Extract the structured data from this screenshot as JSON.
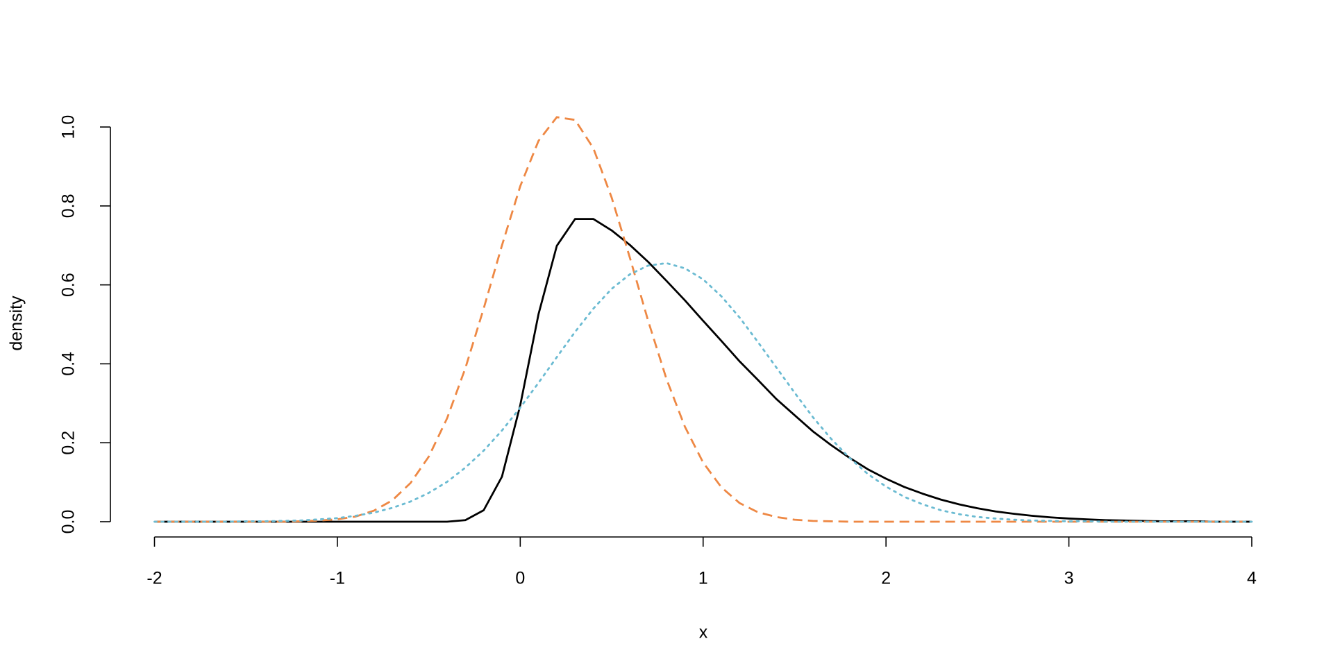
{
  "chart_data": {
    "type": "line",
    "xlabel": "x",
    "ylabel": "density",
    "x": [
      -2,
      -1.9,
      -1.8,
      -1.7,
      -1.6,
      -1.5,
      -1.4,
      -1.3,
      -1.2,
      -1.1,
      -1,
      -0.9,
      -0.8,
      -0.7,
      -0.6,
      -0.5,
      -0.4,
      -0.3,
      -0.2,
      -0.1,
      0,
      0.1,
      0.2,
      0.3,
      0.4,
      0.5,
      0.6,
      0.7,
      0.8,
      0.9,
      1,
      1.1,
      1.2,
      1.3,
      1.4,
      1.5,
      1.6,
      1.7,
      1.8,
      1.9,
      2,
      2.1,
      2.2,
      2.3,
      2.4,
      2.5,
      2.6,
      2.7,
      2.8,
      2.9,
      3,
      3.1,
      3.2,
      3.3,
      3.4,
      3.5,
      3.6,
      3.7,
      3.8,
      3.9,
      4
    ],
    "series": [
      {
        "color": "#000000",
        "linestyle": "solid",
        "values": [
          0,
          0,
          0,
          0,
          0,
          0,
          0,
          0,
          0,
          0,
          0,
          0,
          0,
          0,
          0,
          0,
          0,
          0.004,
          0.029,
          0.114,
          0.295,
          0.526,
          0.699,
          0.767,
          0.767,
          0.738,
          0.701,
          0.658,
          0.61,
          0.561,
          0.509,
          0.458,
          0.406,
          0.359,
          0.311,
          0.27,
          0.229,
          0.194,
          0.162,
          0.133,
          0.109,
          0.088,
          0.071,
          0.056,
          0.044,
          0.034,
          0.026,
          0.02,
          0.015,
          0.011,
          0.008,
          0.006,
          0.004,
          0.003,
          0.002,
          0.001,
          0.001,
          0.001,
          0,
          0,
          0
        ]
      },
      {
        "color": "#ee8844",
        "linestyle": "dashed",
        "values": [
          0,
          0,
          0,
          0,
          0,
          0,
          0,
          0,
          0.001,
          0.003,
          0.006,
          0.013,
          0.028,
          0.054,
          0.098,
          0.165,
          0.262,
          0.389,
          0.54,
          0.7,
          0.85,
          0.965,
          1.025,
          1.018,
          0.946,
          0.821,
          0.668,
          0.508,
          0.361,
          0.241,
          0.15,
          0.087,
          0.047,
          0.024,
          0.012,
          0.005,
          0.002,
          0.001,
          0,
          0,
          0,
          0,
          0,
          0,
          0,
          0,
          0,
          0,
          0,
          0,
          0,
          0,
          0,
          0,
          0,
          0,
          0,
          0,
          0,
          0,
          0
        ]
      },
      {
        "color": "#6bbbd2",
        "linestyle": "dotted",
        "values": [
          0,
          0,
          0,
          0,
          0,
          0.001,
          0.001,
          0.002,
          0.003,
          0.006,
          0.009,
          0.015,
          0.023,
          0.035,
          0.051,
          0.073,
          0.101,
          0.137,
          0.18,
          0.231,
          0.289,
          0.352,
          0.417,
          0.481,
          0.54,
          0.59,
          0.627,
          0.649,
          0.655,
          0.642,
          0.614,
          0.571,
          0.517,
          0.455,
          0.391,
          0.327,
          0.265,
          0.21,
          0.162,
          0.121,
          0.089,
          0.063,
          0.044,
          0.029,
          0.019,
          0.012,
          0.008,
          0.005,
          0.003,
          0.002,
          0.001,
          0.001,
          0,
          0,
          0,
          0,
          0,
          0,
          0,
          0,
          0
        ]
      }
    ],
    "xlim": [
      -2,
      4
    ],
    "xticks": [
      -2,
      -1,
      0,
      1,
      2,
      3,
      4
    ],
    "ylim": [
      0,
      1.03
    ],
    "yticks": [
      {
        "value": 0,
        "label": "0.0"
      },
      {
        "value": 0.2,
        "label": "0.2"
      },
      {
        "value": 0.4,
        "label": "0.4"
      },
      {
        "value": 0.6,
        "label": "0.6"
      },
      {
        "value": 0.8,
        "label": "0.8"
      },
      {
        "value": 1,
        "label": "1.0"
      }
    ],
    "grid": false
  }
}
